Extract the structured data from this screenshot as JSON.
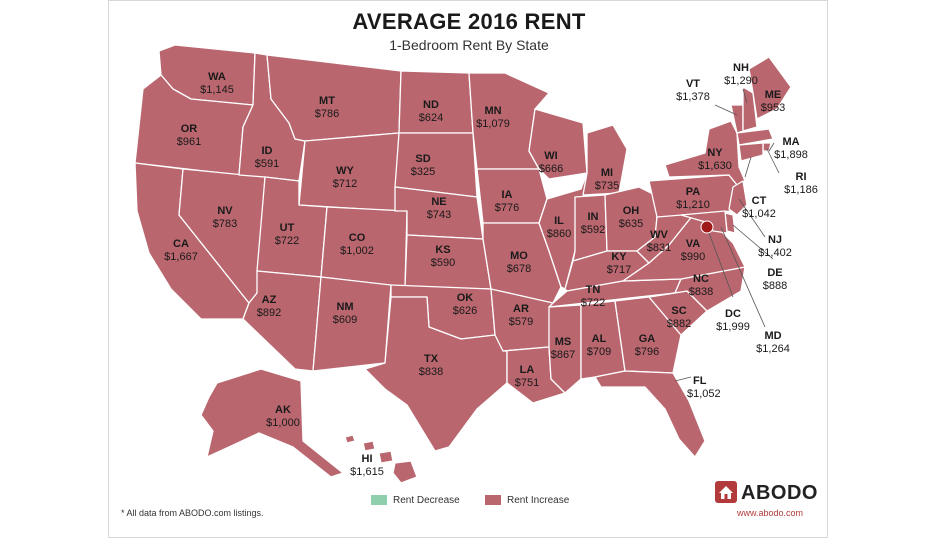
{
  "title": "AVERAGE 2016 RENT",
  "subtitle": "1-Bedroom Rent By State",
  "colors": {
    "increase": "#b9666e",
    "decrease": "#8fcfae",
    "brand": "#b33a3a"
  },
  "legend": {
    "decrease_label": "Rent Decrease",
    "increase_label": "Rent Increase"
  },
  "footnote": "* All data from ABODO.com listings.",
  "brand": {
    "name": "ABODO",
    "url": "www.abodo.com",
    "logo_icon": "house-icon"
  },
  "states": [
    {
      "abbr": "WA",
      "rent": "$1,145",
      "trend": "increase"
    },
    {
      "abbr": "OR",
      "rent": "$961",
      "trend": "increase"
    },
    {
      "abbr": "CA",
      "rent": "$1,667",
      "trend": "increase"
    },
    {
      "abbr": "NV",
      "rent": "$783",
      "trend": "decrease"
    },
    {
      "abbr": "ID",
      "rent": "$591",
      "trend": "increase"
    },
    {
      "abbr": "MT",
      "rent": "$786",
      "trend": "increase"
    },
    {
      "abbr": "WY",
      "rent": "$712",
      "trend": "increase"
    },
    {
      "abbr": "UT",
      "rent": "$722",
      "trend": "decrease"
    },
    {
      "abbr": "AZ",
      "rent": "$892",
      "trend": "increase"
    },
    {
      "abbr": "CO",
      "rent": "$1,002",
      "trend": "increase"
    },
    {
      "abbr": "NM",
      "rent": "$609",
      "trend": "increase"
    },
    {
      "abbr": "ND",
      "rent": "$624",
      "trend": "increase"
    },
    {
      "abbr": "SD",
      "rent": "$325",
      "trend": "decrease"
    },
    {
      "abbr": "NE",
      "rent": "$743",
      "trend": "increase"
    },
    {
      "abbr": "KS",
      "rent": "$590",
      "trend": "increase"
    },
    {
      "abbr": "OK",
      "rent": "$626",
      "trend": "increase"
    },
    {
      "abbr": "TX",
      "rent": "$838",
      "trend": "increase"
    },
    {
      "abbr": "MN",
      "rent": "$1,079",
      "trend": "increase"
    },
    {
      "abbr": "IA",
      "rent": "$776",
      "trend": "increase"
    },
    {
      "abbr": "MO",
      "rent": "$678",
      "trend": "increase"
    },
    {
      "abbr": "AR",
      "rent": "$579",
      "trend": "increase"
    },
    {
      "abbr": "LA",
      "rent": "$751",
      "trend": "increase"
    },
    {
      "abbr": "WI",
      "rent": "$666",
      "trend": "increase"
    },
    {
      "abbr": "IL",
      "rent": "$860",
      "trend": "increase"
    },
    {
      "abbr": "MI",
      "rent": "$735",
      "trend": "increase"
    },
    {
      "abbr": "IN",
      "rent": "$592",
      "trend": "increase"
    },
    {
      "abbr": "OH",
      "rent": "$635",
      "trend": "increase"
    },
    {
      "abbr": "KY",
      "rent": "$717",
      "trend": "increase"
    },
    {
      "abbr": "TN",
      "rent": "$722",
      "trend": "increase"
    },
    {
      "abbr": "MS",
      "rent": "$867",
      "trend": "increase"
    },
    {
      "abbr": "AL",
      "rent": "$709",
      "trend": "decrease"
    },
    {
      "abbr": "GA",
      "rent": "$796",
      "trend": "increase"
    },
    {
      "abbr": "FL",
      "rent": "$1,052",
      "trend": "increase"
    },
    {
      "abbr": "SC",
      "rent": "$882",
      "trend": "increase"
    },
    {
      "abbr": "NC",
      "rent": "$838",
      "trend": "increase"
    },
    {
      "abbr": "VA",
      "rent": "$990",
      "trend": "increase"
    },
    {
      "abbr": "WV",
      "rent": "$831",
      "trend": "increase"
    },
    {
      "abbr": "PA",
      "rent": "$1,210",
      "trend": "increase"
    },
    {
      "abbr": "NY",
      "rent": "$1,630",
      "trend": "decrease"
    },
    {
      "abbr": "VT",
      "rent": "$1,378",
      "trend": "increase"
    },
    {
      "abbr": "NH",
      "rent": "$1,290",
      "trend": "increase"
    },
    {
      "abbr": "ME",
      "rent": "$953",
      "trend": "increase"
    },
    {
      "abbr": "MA",
      "rent": "$1,898",
      "trend": "increase"
    },
    {
      "abbr": "RI",
      "rent": "$1,186",
      "trend": "increase"
    },
    {
      "abbr": "CT",
      "rent": "$1,042",
      "trend": "increase"
    },
    {
      "abbr": "NJ",
      "rent": "$1,402",
      "trend": "decrease"
    },
    {
      "abbr": "DE",
      "rent": "$888",
      "trend": "increase"
    },
    {
      "abbr": "MD",
      "rent": "$1,264",
      "trend": "increase"
    },
    {
      "abbr": "DC",
      "rent": "$1,999",
      "trend": "increase"
    },
    {
      "abbr": "AK",
      "rent": "$1,000",
      "trend": "increase"
    },
    {
      "abbr": "HI",
      "rent": "$1,615",
      "trend": "increase"
    }
  ]
}
